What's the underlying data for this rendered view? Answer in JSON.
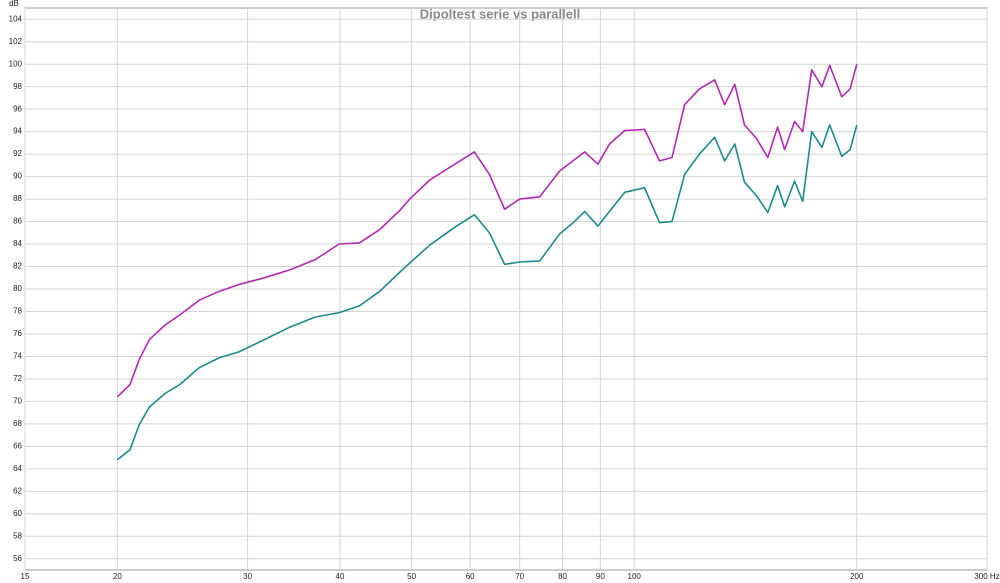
{
  "chart_data": {
    "type": "line",
    "title": "Dipoltest serie vs parallell",
    "y_label": "dB",
    "x_scale": "log",
    "grid": true,
    "x": [
      20,
      20.8,
      21.4,
      22.1,
      23.2,
      24.3,
      25.8,
      27.5,
      29.2,
      31.6,
      34.2,
      37.0,
      39.9,
      42.5,
      45.3,
      48.2,
      49.7,
      52.9,
      57.2,
      60.8,
      63.7,
      66.8,
      70.0,
      74.5,
      79.3,
      83.0,
      85.7,
      89.3,
      92.6,
      97.1,
      103.3,
      108.2,
      112.5,
      117.0,
      122.5,
      128.5,
      132.5,
      136.8,
      141.0,
      146.3,
      151.6,
      156.3,
      159.8,
      164.8,
      169.0,
      173.8,
      179.4,
      183.8,
      190.9,
      195.9,
      200
    ],
    "series": [
      {
        "color": "#b02ab4",
        "values": [
          70.4,
          71.5,
          73.7,
          75.5,
          76.8,
          77.7,
          79.0,
          79.8,
          80.4,
          81.0,
          81.7,
          82.6,
          84.0,
          84.1,
          85.3,
          87.0,
          88.0,
          89.7,
          91.1,
          92.2,
          90.2,
          87.1,
          88.0,
          88.2,
          90.5,
          91.5,
          92.2,
          91.1,
          92.9,
          94.1,
          94.2,
          91.4,
          91.7,
          96.4,
          97.8,
          98.6,
          96.4,
          98.2,
          94.6,
          93.4,
          91.7,
          94.4,
          92.4,
          94.9,
          94.0,
          99.5,
          98.0,
          99.9,
          97.1,
          97.8,
          100.0
        ]
      },
      {
        "color": "#1f8a8a",
        "values": [
          64.8,
          65.7,
          67.9,
          69.5,
          70.7,
          71.5,
          73.0,
          73.9,
          74.4,
          75.5,
          76.6,
          77.5,
          77.9,
          78.5,
          79.8,
          81.5,
          82.3,
          83.9,
          85.5,
          86.6,
          85.0,
          82.2,
          82.4,
          82.5,
          84.9,
          86.0,
          86.9,
          85.6,
          86.9,
          88.6,
          89.0,
          85.9,
          86.0,
          90.2,
          92.0,
          93.5,
          91.4,
          92.9,
          89.5,
          88.3,
          86.8,
          89.2,
          87.3,
          89.6,
          87.8,
          94.0,
          92.6,
          94.6,
          91.8,
          92.4,
          94.6
        ]
      }
    ],
    "xlim": [
      15,
      300
    ],
    "xticks": [
      15,
      20,
      30,
      40,
      50,
      60,
      70,
      80,
      90,
      100,
      200,
      {
        "value": 300,
        "label": "300 Hz"
      }
    ],
    "ylim": [
      55,
      105
    ],
    "yticks": [
      56,
      58,
      60,
      62,
      64,
      66,
      68,
      70,
      72,
      74,
      76,
      78,
      80,
      82,
      84,
      86,
      88,
      90,
      92,
      94,
      96,
      98,
      100,
      102,
      104
    ]
  }
}
